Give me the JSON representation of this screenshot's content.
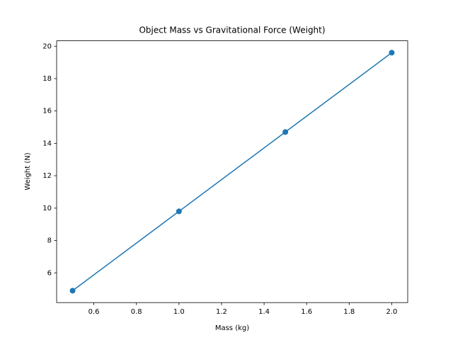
{
  "chart_data": {
    "type": "line",
    "title": "Object Mass vs Gravitational Force (Weight)",
    "x_label": "Mass (kg)",
    "y_label": "Weight (N)",
    "x": [
      0.5,
      1.0,
      1.5,
      2.0
    ],
    "series": [
      {
        "color": "#1f77b4",
        "values": [
          4.9,
          9.8,
          14.7,
          19.6
        ]
      }
    ],
    "markers": true,
    "xlim": [
      0.425,
      2.075
    ],
    "xticks": [
      0.6,
      0.8,
      {
        "value": 1,
        "label": "1.0"
      },
      1.2,
      1.4,
      1.6,
      1.8,
      {
        "value": 2,
        "label": "2.0"
      }
    ],
    "ylim": [
      4.165,
      20.335
    ],
    "yticks": [
      6,
      8,
      10,
      12,
      14,
      16,
      18,
      20
    ],
    "grid": false
  }
}
